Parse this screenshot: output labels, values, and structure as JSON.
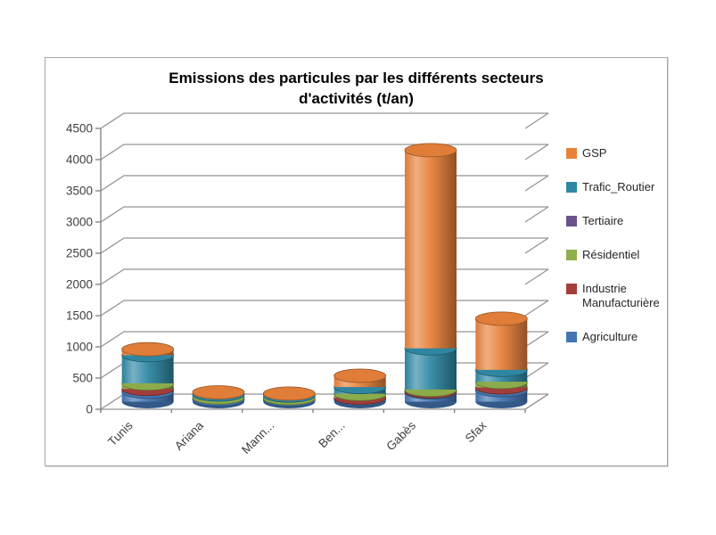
{
  "chart": {
    "background": "#ffffff",
    "border_color": "#a6a6a6",
    "axis_color": "#808080",
    "gridline_color": "#949494",
    "label_color": "#404040"
  },
  "chart_data": {
    "type": "bar",
    "subtype": "3d-stacked-cylinder",
    "title": "Emissions des particules par les différents secteurs d'activités (t/an)",
    "xlabel": "",
    "ylabel": "",
    "categories": [
      "Tunis",
      "Ariana",
      "Mann...",
      "Ben...",
      "Gabès",
      "Sfax"
    ],
    "series": [
      {
        "name": "Agriculture",
        "color": "#4476b4",
        "values": [
          160,
          38,
          32,
          45,
          150,
          185
        ]
      },
      {
        "name": "Industrie Manufacturière",
        "color": "#a43e3b",
        "values": [
          45,
          7,
          6,
          18,
          15,
          42
        ]
      },
      {
        "name": "Résidentiel",
        "color": "#8fae4c",
        "values": [
          85,
          22,
          18,
          60,
          25,
          88
        ]
      },
      {
        "name": "Tertiaire",
        "color": "#6a538a",
        "values": [
          5,
          3,
          3,
          4,
          5,
          5
        ]
      },
      {
        "name": "Trafic_Routier",
        "color": "#3089a4",
        "values": [
          450,
          45,
          38,
          108,
          660,
          190
        ]
      },
      {
        "name": "GSP",
        "color": "#e8823b",
        "values": [
          95,
          35,
          33,
          180,
          3175,
          820
        ]
      }
    ],
    "totals": [
      840,
      150,
      130,
      415,
      4030,
      1330
    ],
    "ylim": [
      0,
      4500
    ],
    "y_ticks": [
      0,
      500,
      1000,
      1500,
      2000,
      2500,
      3000,
      3500,
      4000,
      4500
    ],
    "grid": true,
    "legend_position": "right",
    "legend_order_top_to_bottom": [
      "GSP",
      "Trafic_Routier",
      "Tertiaire",
      "Résidentiel",
      "Industrie Manufacturière",
      "Agriculture"
    ]
  }
}
